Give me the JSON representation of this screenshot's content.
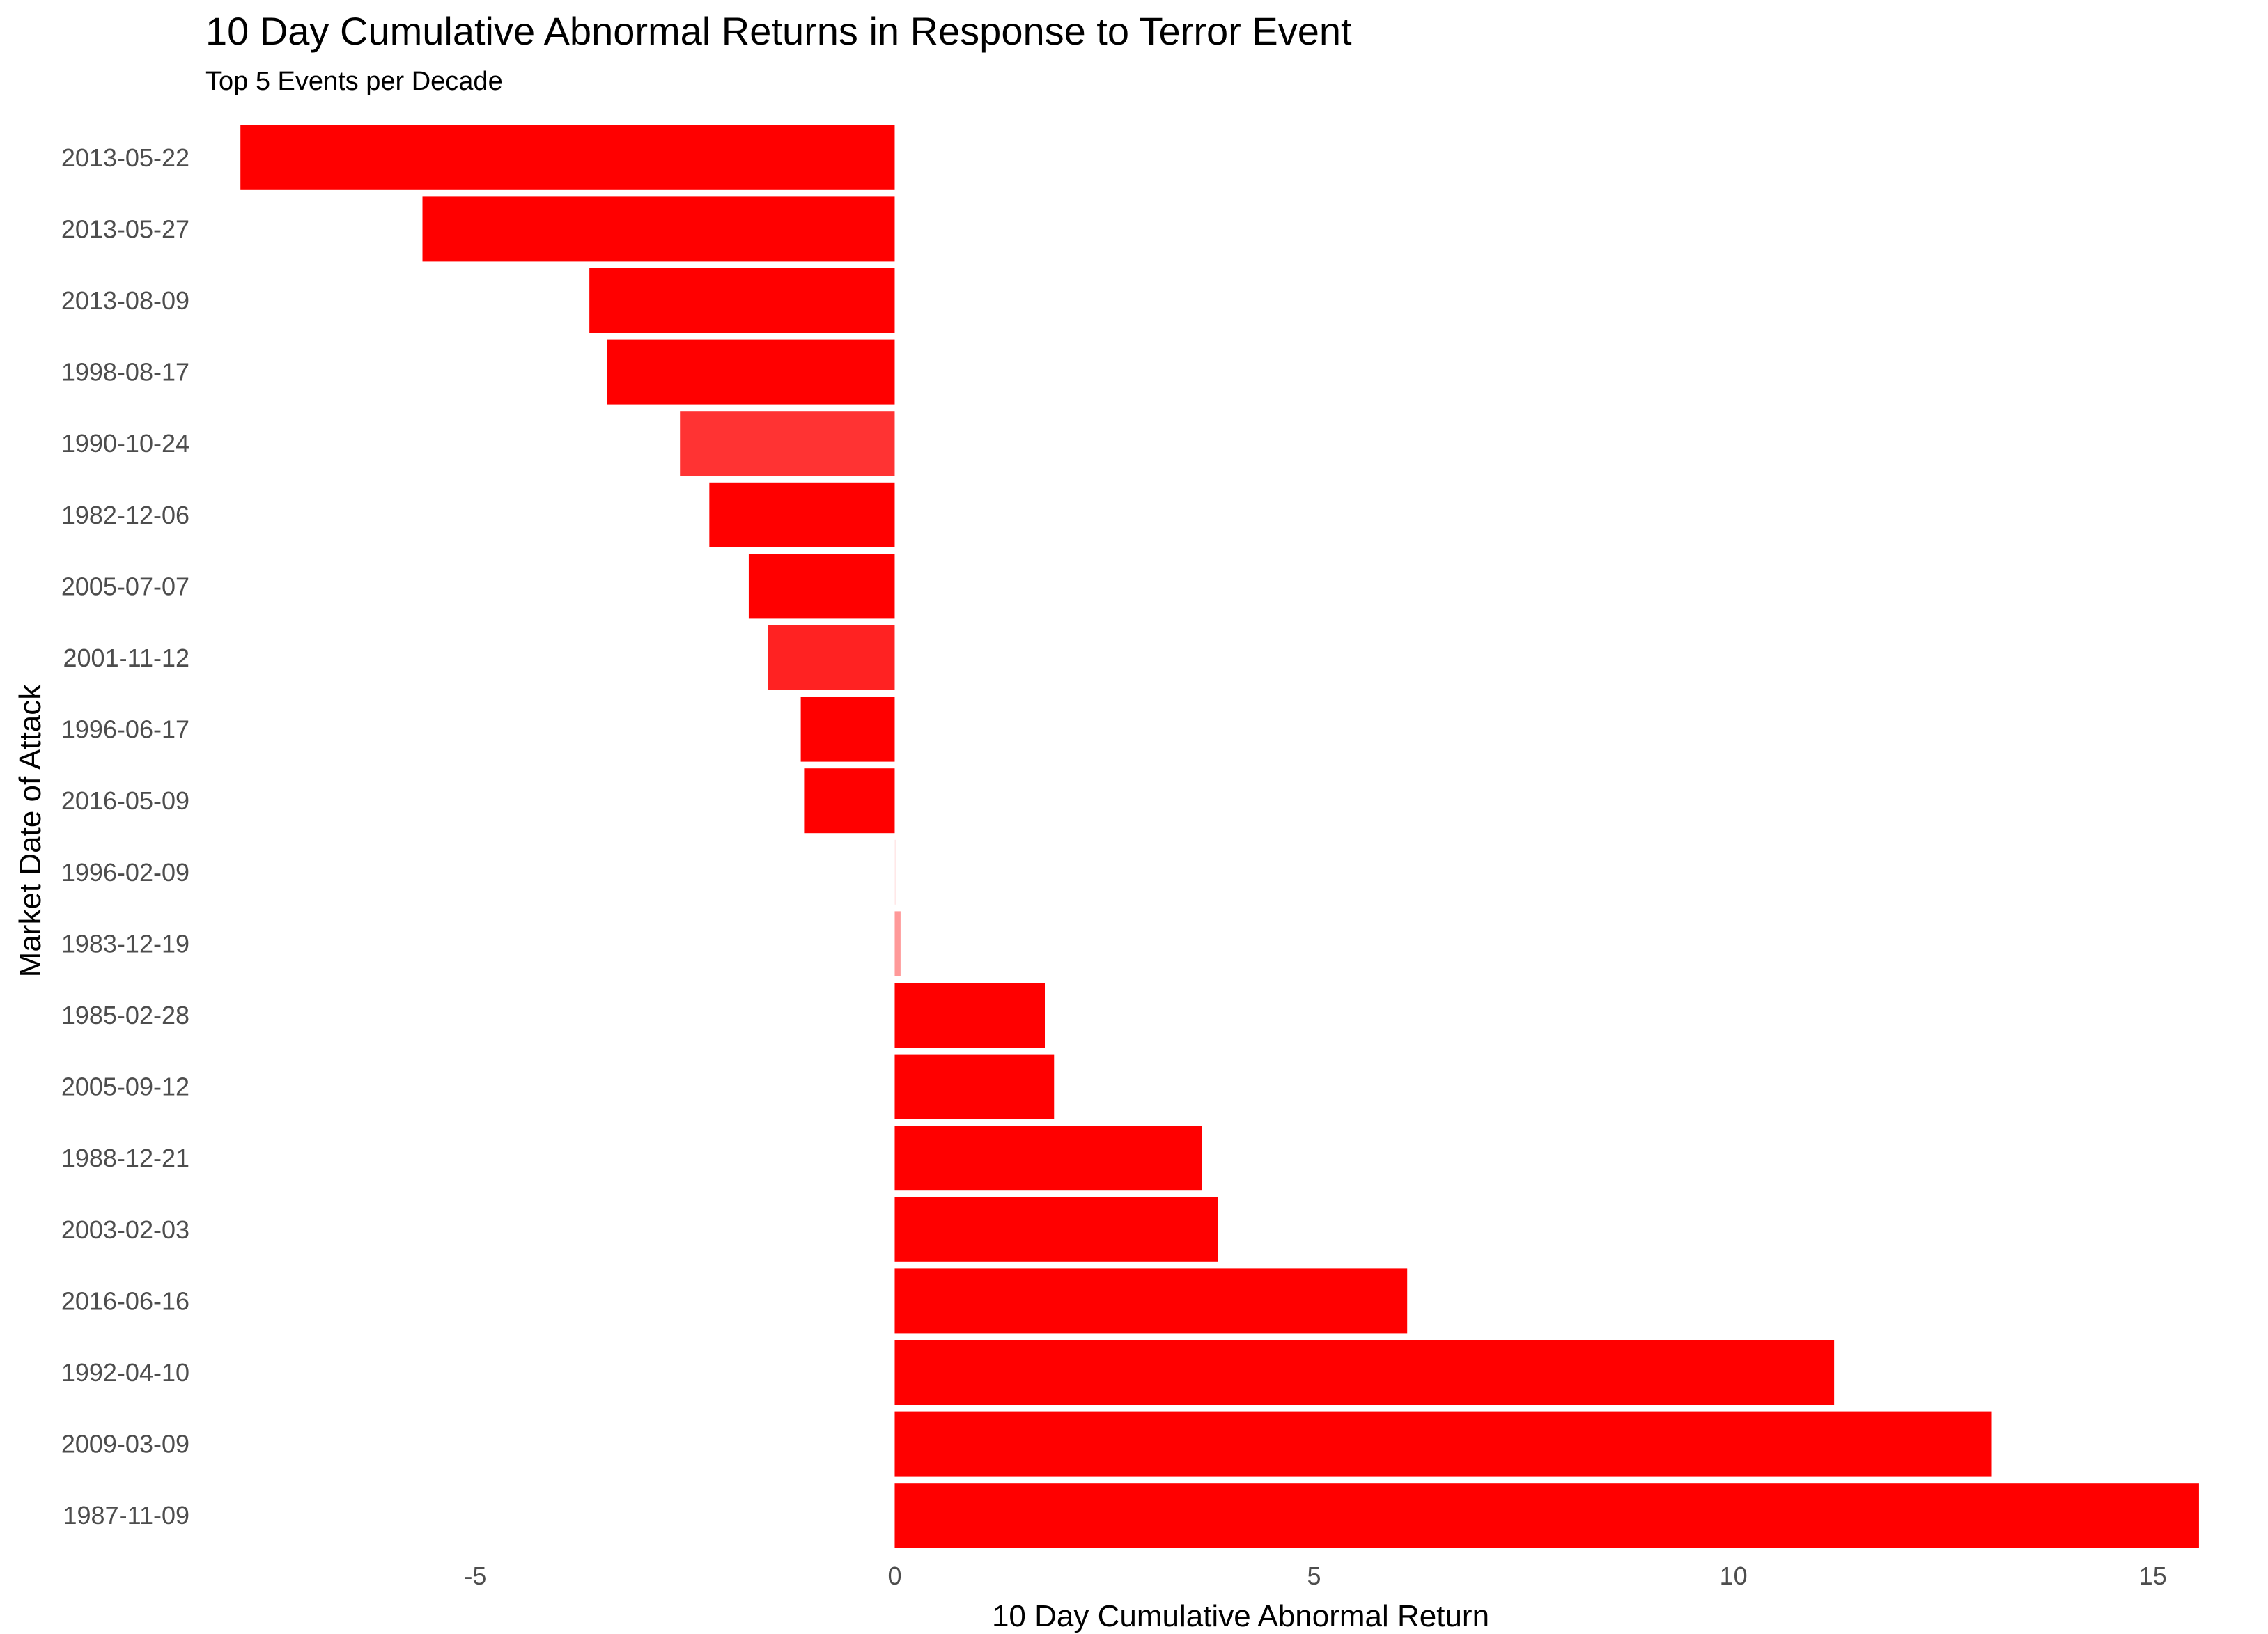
{
  "chart_data": {
    "type": "bar",
    "orientation": "horizontal",
    "title": "10 Day Cumulative Abnormal Returns in Response to Terror Event",
    "subtitle": "Top 5 Events per Decade",
    "xlabel": "10 Day Cumulative Abnormal Return",
    "ylabel": "Market Date of Attack",
    "xlim": [
      -8.3,
      15.7
    ],
    "xticks": [
      -5,
      0,
      5,
      10,
      15
    ],
    "grid": false,
    "categories": [
      "2013-05-22",
      "2013-05-27",
      "2013-08-09",
      "1998-08-17",
      "1990-10-24",
      "1982-12-06",
      "2005-07-07",
      "2001-11-12",
      "1996-06-17",
      "2016-05-09",
      "1996-02-09",
      "1983-12-19",
      "1985-02-28",
      "2005-09-12",
      "1988-12-21",
      "2003-02-03",
      "2016-06-16",
      "1992-04-10",
      "2009-03-09",
      "1987-11-09"
    ],
    "values": [
      -7.8,
      -5.63,
      -3.64,
      -3.43,
      -2.56,
      -2.21,
      -1.74,
      -1.51,
      -1.12,
      -1.08,
      0.02,
      0.07,
      1.79,
      1.9,
      3.66,
      3.85,
      6.11,
      11.2,
      13.08,
      15.55
    ],
    "bar_colors": [
      "#ff0000",
      "#ff0000",
      "#ff0000",
      "#ff0000",
      "#ff3333",
      "#ff0000",
      "#ff0000",
      "#ff2222",
      "#ff0000",
      "#ff0000",
      "#ffe8e8",
      "#ff9999",
      "#ff0000",
      "#ff0000",
      "#ff0000",
      "#ff0000",
      "#ff0000",
      "#ff0000",
      "#ff0000",
      "#ff0000"
    ]
  },
  "colors": {
    "bar": "#ff0000",
    "text": "#000000",
    "tick_text": "#4d4d4d",
    "background": "#ffffff"
  }
}
